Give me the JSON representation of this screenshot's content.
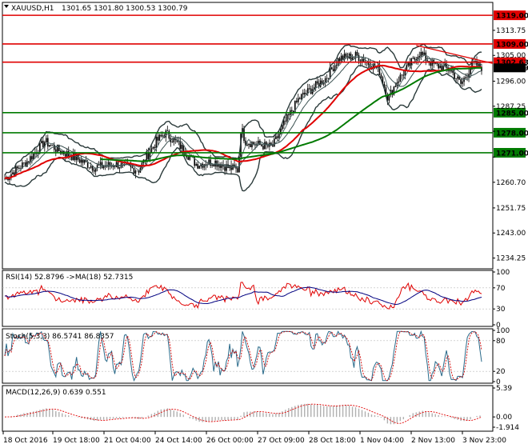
{
  "header": {
    "symbol": "XAUUSD,H1",
    "ohlc": "1301.65 1301.80 1300.53 1300.79"
  },
  "main_panel": {
    "price_ticks": [
      "1313.75",
      "1305.00",
      "1296.00",
      "1287.25",
      "1278.50",
      "1269.50",
      "1260.70",
      "1251.75",
      "1243.00",
      "1234.25"
    ],
    "price_range": [
      1230.5,
      1323.5
    ],
    "levels": [
      {
        "value": "1319.00",
        "price": 1319.0,
        "color": "#e00000"
      },
      {
        "value": "1309.00",
        "price": 1309.0,
        "color": "#e00000"
      },
      {
        "value": "1302.63",
        "price": 1302.63,
        "color": "#e00000"
      },
      {
        "value": "1285.00",
        "price": 1285.0,
        "color": "#007a00"
      },
      {
        "value": "1278.00",
        "price": 1278.0,
        "color": "#007a00"
      },
      {
        "value": "1271.00",
        "price": 1271.0,
        "color": "#007a00"
      }
    ],
    "current_price": {
      "value": "1300.79",
      "price": 1300.79,
      "color": "#000000"
    }
  },
  "rsi_panel": {
    "label": "RSI(14) 52.8796  ->MA(18) 52.7315",
    "ticks": [
      "100",
      "70",
      "30",
      "0"
    ]
  },
  "stoch_panel": {
    "label": "Stoch(5,3,3) 86.5741 86.8357",
    "ticks": [
      "100",
      "80",
      "20",
      "0"
    ]
  },
  "macd_panel": {
    "label": "MACD(12,26,9) 0.639 0.551",
    "ticks": [
      "5.39",
      "0.00",
      "-1.914"
    ]
  },
  "time_axis": [
    "18 Oct 2016",
    "19 Oct 18:00",
    "21 Oct 04:00",
    "24 Oct 14:00",
    "26 Oct 00:00",
    "27 Oct 09:00",
    "28 Oct 18:00",
    "1 Nov 04:00",
    "2 Nov 13:00",
    "3 Nov 23:00"
  ],
  "colors": {
    "candle": "#000000",
    "ma_fast": "#e00000",
    "ma_slow": "#007a00",
    "bollinger": "#2a3a3a",
    "rsi": "#e00000",
    "rsi_ma": "#000080",
    "stoch_main": "#2a6a8a",
    "stoch_signal": "#d00000",
    "macd_hist": "#b0b0b0",
    "macd_signal": "#e00000"
  }
}
